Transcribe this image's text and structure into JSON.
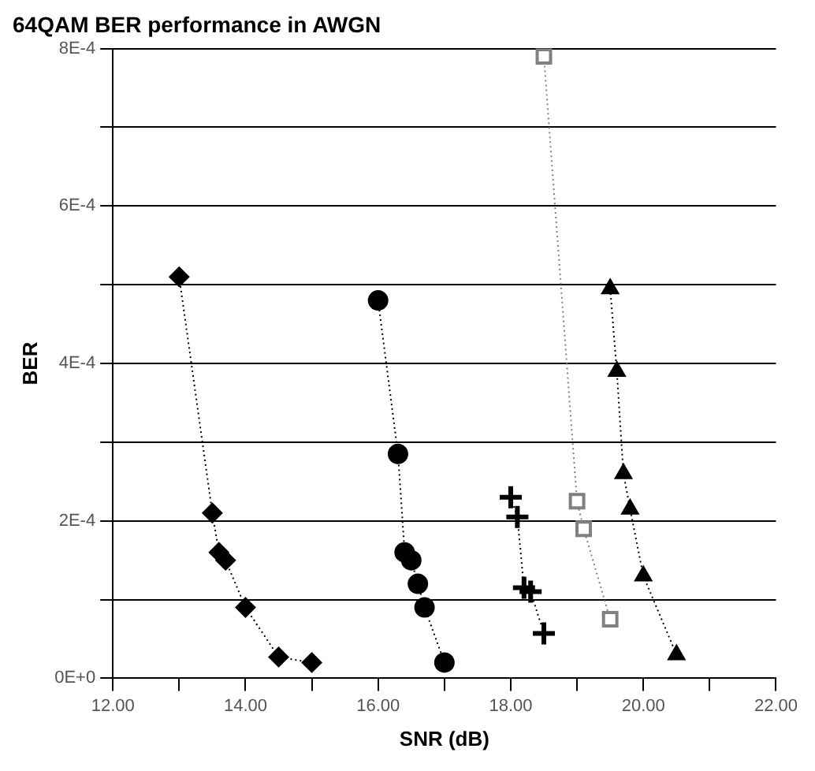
{
  "chart_data": {
    "type": "line",
    "title": "64QAM BER performance in AWGN",
    "xlabel": "SNR (dB)",
    "ylabel": "BER",
    "xlim": [
      12,
      22
    ],
    "xticks": [
      {
        "value": 12,
        "label": "12.00"
      },
      {
        "value": 13,
        "label": null
      },
      {
        "value": 14,
        "label": "14.00"
      },
      {
        "value": 15,
        "label": null
      },
      {
        "value": 16,
        "label": "16.00"
      },
      {
        "value": 17,
        "label": null
      },
      {
        "value": 18,
        "label": "18.00"
      },
      {
        "value": 19,
        "label": null
      },
      {
        "value": 20,
        "label": "20.00"
      },
      {
        "value": 21,
        "label": null
      },
      {
        "value": 22,
        "label": "22.00"
      }
    ],
    "ylim": [
      0,
      0.0008
    ],
    "yticks": [
      {
        "value": 0,
        "label": "0E+0"
      },
      {
        "value": 0.0001,
        "label": null
      },
      {
        "value": 0.0002,
        "label": "2E-4"
      },
      {
        "value": 0.0003,
        "label": null
      },
      {
        "value": 0.0004,
        "label": "4E-4"
      },
      {
        "value": 0.0005,
        "label": null
      },
      {
        "value": 0.0006,
        "label": "6E-4"
      },
      {
        "value": 0.0007,
        "label": null
      },
      {
        "value": 0.0008,
        "label": "8E-4"
      }
    ],
    "grid": "y",
    "legend": false,
    "line_style": "dotted",
    "series": [
      {
        "marker": "diamond",
        "color": "#000000",
        "x": [
          13.0,
          13.5,
          13.6,
          13.7,
          14.0,
          14.5,
          15.0
        ],
        "values": [
          0.00051,
          0.00021,
          0.00016,
          0.00015,
          9e-05,
          2.7e-05,
          2e-05
        ]
      },
      {
        "marker": "circle",
        "color": "#000000",
        "x": [
          16.0,
          16.3,
          16.4,
          16.5,
          16.6,
          16.7,
          17.0
        ],
        "values": [
          0.00048,
          0.000285,
          0.00016,
          0.00015,
          0.00012,
          9e-05,
          2e-05
        ]
      },
      {
        "marker": "cross",
        "color": "#000000",
        "x": [
          18.0,
          18.1,
          18.2,
          18.3,
          18.5
        ],
        "values": [
          0.00023,
          0.000205,
          0.000115,
          0.00011,
          5.7e-05
        ]
      },
      {
        "marker": "square",
        "color": "#808080",
        "x": [
          18.5,
          19.0,
          19.1,
          19.5
        ],
        "values": [
          0.00079,
          0.000225,
          0.00019,
          7.5e-05
        ]
      },
      {
        "marker": "triangle",
        "color": "#000000",
        "x": [
          19.5,
          19.6,
          19.7,
          19.8,
          20.0,
          20.5
        ],
        "values": [
          0.000495,
          0.00039,
          0.00026,
          0.000215,
          0.00013,
          3e-05
        ]
      }
    ]
  }
}
